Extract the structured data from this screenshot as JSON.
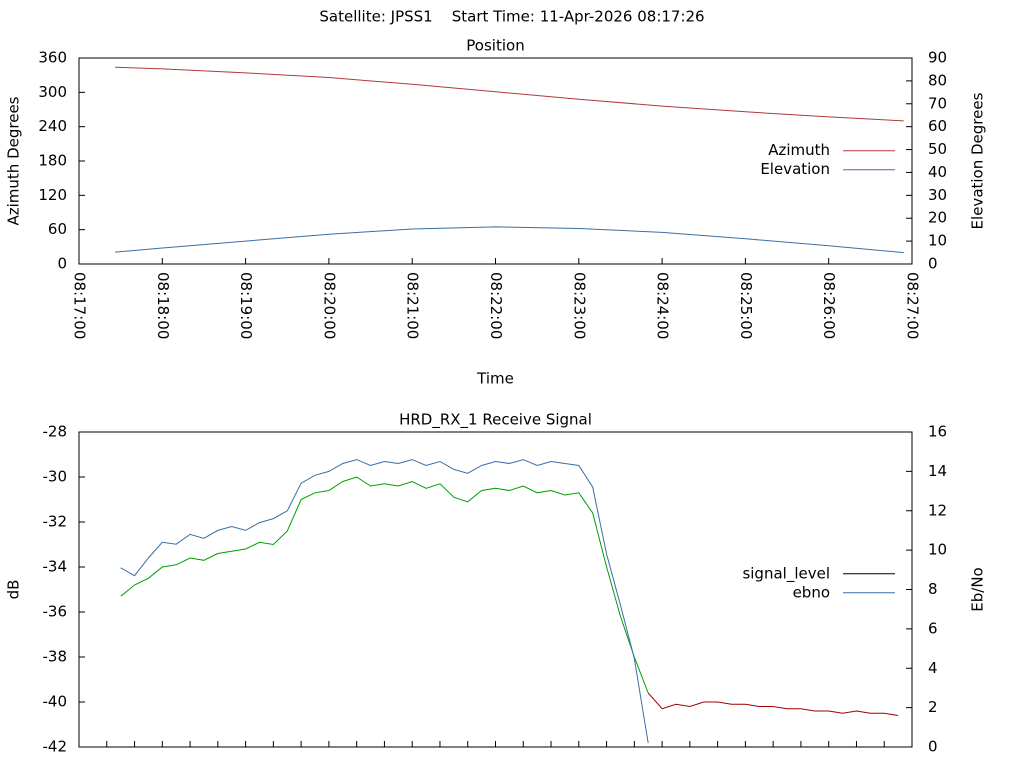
{
  "title": "Satellite: JPSS1    Start Time: 11-Apr-2026 08:17:26",
  "chart_data": [
    {
      "type": "line",
      "title": "Position",
      "x_label": "Time",
      "y_label": "Azimuth Degrees",
      "y2_label": "Elevation Degrees",
      "x": [
        "08:17:26",
        "08:18:00",
        "08:19:00",
        "08:20:00",
        "08:21:00",
        "08:22:00",
        "08:23:00",
        "08:24:00",
        "08:25:00",
        "08:26:00",
        "08:26:54"
      ],
      "xlim": [
        "08:17:00",
        "08:27:00"
      ],
      "xticks": [
        "08:17:00",
        "08:18:00",
        "08:19:00",
        "08:20:00",
        "08:21:00",
        "08:22:00",
        "08:23:00",
        "08:24:00",
        "08:25:00",
        "08:26:00",
        "08:27:00"
      ],
      "xtick_labels": true,
      "ylim": [
        0,
        360
      ],
      "yticks": [
        0,
        60,
        120,
        180,
        240,
        300,
        360
      ],
      "y2lim": [
        0,
        90
      ],
      "y2ticks": [
        0,
        10,
        20,
        30,
        40,
        50,
        60,
        70,
        80,
        90
      ],
      "legend": "right",
      "series": [
        {
          "name": "Azimuth",
          "color": "#b03a3a",
          "values": [
            344,
            341,
            334,
            326,
            314,
            301,
            288,
            276,
            266,
            257,
            250
          ]
        },
        {
          "name": "Elevation",
          "color": "#3a6ea5",
          "axis": "y2",
          "values": [
            5.2,
            7,
            10,
            13,
            15.3,
            16.2,
            15.5,
            13.8,
            11,
            8,
            5
          ]
        }
      ]
    },
    {
      "type": "line",
      "title": "HRD_RX_1 Receive Signal",
      "y_label": "dB",
      "y2_label": "Eb/No",
      "x": [
        "08:17:30",
        "08:17:40",
        "08:17:50",
        "08:18:00",
        "08:18:10",
        "08:18:20",
        "08:18:30",
        "08:18:40",
        "08:18:50",
        "08:19:00",
        "08:19:10",
        "08:19:20",
        "08:19:30",
        "08:19:40",
        "08:19:50",
        "08:20:00",
        "08:20:10",
        "08:20:20",
        "08:20:30",
        "08:20:40",
        "08:20:50",
        "08:21:00",
        "08:21:10",
        "08:21:20",
        "08:21:30",
        "08:21:40",
        "08:21:50",
        "08:22:00",
        "08:22:10",
        "08:22:20",
        "08:22:30",
        "08:22:40",
        "08:22:50",
        "08:23:00",
        "08:23:10",
        "08:23:20",
        "08:23:30",
        "08:23:40",
        "08:23:50",
        "08:24:00",
        "08:24:10",
        "08:24:20",
        "08:24:30",
        "08:24:40",
        "08:24:50",
        "08:25:00",
        "08:25:10",
        "08:25:20",
        "08:25:30",
        "08:25:40",
        "08:25:50",
        "08:26:00",
        "08:26:10",
        "08:26:20",
        "08:26:30",
        "08:26:40",
        "08:26:50"
      ],
      "xlim": [
        "08:17:00",
        "08:27:00"
      ],
      "xticks": [
        "08:17:00",
        "08:17:20",
        "08:17:40",
        "08:18:00",
        "08:18:20",
        "08:18:40",
        "08:19:00",
        "08:19:20",
        "08:19:40",
        "08:20:00",
        "08:20:20",
        "08:20:40",
        "08:21:00",
        "08:21:20",
        "08:21:40",
        "08:22:00",
        "08:22:20",
        "08:22:40",
        "08:23:00",
        "08:23:20",
        "08:23:40",
        "08:24:00",
        "08:24:20",
        "08:24:40",
        "08:25:00",
        "08:25:20",
        "08:25:40",
        "08:26:00",
        "08:26:20",
        "08:26:40",
        "08:27:00"
      ],
      "xtick_labels": false,
      "ylim": [
        -42,
        -28
      ],
      "yticks": [
        -42,
        -40,
        -38,
        -36,
        -34,
        -32,
        -30,
        -28
      ],
      "y2lim": [
        0,
        16
      ],
      "y2ticks": [
        0,
        2,
        4,
        6,
        8,
        10,
        12,
        14,
        16
      ],
      "legend": "right",
      "series": [
        {
          "name": "signal_level",
          "color": "#000000",
          "line_colors": [
            "#00a000",
            "#00a000",
            "#00a000",
            "#00a000",
            "#00a000",
            "#00a000",
            "#00a000",
            "#00a000",
            "#00a000",
            "#00a000",
            "#00a000",
            "#00a000",
            "#00a000",
            "#00a000",
            "#00a000",
            "#00a000",
            "#00a000",
            "#00a000",
            "#00a000",
            "#00a000",
            "#00a000",
            "#00a000",
            "#00a000",
            "#00a000",
            "#00a000",
            "#00a000",
            "#00a000",
            "#00a000",
            "#00a000",
            "#00a000",
            "#00a000",
            "#00a000",
            "#00a000",
            "#00a000",
            "#00a000",
            "#00a000",
            "#00a000",
            "#00a000",
            "#00a000",
            "#a00000",
            "#a00000",
            "#a00000",
            "#a00000",
            "#a00000",
            "#a00000",
            "#a00000",
            "#a00000",
            "#a00000",
            "#a00000",
            "#a00000",
            "#a00000",
            "#a00000",
            "#a00000",
            "#a00000",
            "#a00000",
            "#a00000",
            "#a00000"
          ],
          "values": [
            -35.3,
            -34.8,
            -34.5,
            -34.0,
            -33.9,
            -33.6,
            -33.7,
            -33.4,
            -33.3,
            -33.2,
            -32.9,
            -33.0,
            -32.4,
            -31.0,
            -30.7,
            -30.6,
            -30.2,
            -30.0,
            -30.4,
            -30.3,
            -30.4,
            -30.2,
            -30.5,
            -30.3,
            -30.9,
            -31.1,
            -30.6,
            -30.5,
            -30.6,
            -30.4,
            -30.7,
            -30.6,
            -30.8,
            -30.7,
            -31.6,
            -34.0,
            -36.2,
            -38.0,
            -39.6,
            -40.3,
            -40.1,
            -40.2,
            -40.0,
            -40.0,
            -40.1,
            -40.1,
            -40.2,
            -40.2,
            -40.3,
            -40.3,
            -40.4,
            -40.4,
            -40.5,
            -40.4,
            -40.5,
            -40.5,
            -40.6
          ]
        },
        {
          "name": "ebno",
          "color": "#3a6ea5",
          "axis": "y2",
          "values": [
            9.1,
            8.7,
            9.6,
            10.4,
            10.3,
            10.8,
            10.6,
            11.0,
            11.2,
            11.0,
            11.4,
            11.6,
            12.0,
            13.4,
            13.8,
            14.0,
            14.4,
            14.6,
            14.3,
            14.5,
            14.4,
            14.6,
            14.3,
            14.5,
            14.1,
            13.9,
            14.3,
            14.5,
            14.4,
            14.6,
            14.3,
            14.5,
            14.4,
            14.3,
            13.2,
            9.8,
            7.2,
            4.5,
            0.2,
            null,
            null,
            null,
            null,
            null,
            null,
            null,
            null,
            null,
            null,
            null,
            null,
            null,
            null,
            null,
            null,
            null,
            null
          ]
        }
      ]
    }
  ]
}
